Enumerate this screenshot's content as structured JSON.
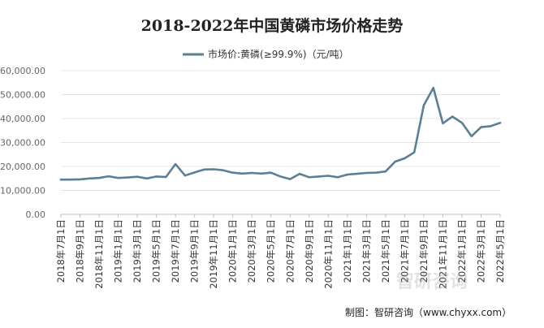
{
  "chart_data": {
    "type": "line",
    "title": "2018-2022年中国黄磷市场价格走势",
    "series": [
      {
        "name": "市场价:黄磷(≥99.9%)（元/吨）",
        "color": "#5b7f95",
        "values": [
          14500,
          14500,
          14600,
          15000,
          15200,
          15900,
          15200,
          15400,
          15700,
          15000,
          15800,
          15600,
          21000,
          16200,
          17500,
          18700,
          18800,
          18400,
          17400,
          17000,
          17300,
          17000,
          17400,
          15800,
          14700,
          16900,
          15500,
          15800,
          16100,
          15500,
          16600,
          16900,
          17300,
          17400,
          17900,
          22000,
          23400,
          25900,
          45500,
          52800,
          38000,
          40800,
          38200,
          32600,
          36400,
          36800,
          38200
        ]
      }
    ],
    "x_tick_labels": [
      "2018年7月1日",
      "2018年9月1日",
      "2018年11月1日",
      "2019年1月1日",
      "2019年3月1日",
      "2019年5月1日",
      "2019年7月1日",
      "2019年9月1日",
      "2019年11月1日",
      "2020年1月1日",
      "2020年3月1日",
      "2020年5月1日",
      "2020年7月1日",
      "2020年9月1日",
      "2020年11月1日",
      "2021年1月1日",
      "2021年3月1日",
      "2021年5月1日",
      "2021年7月1日",
      "2021年9月1日",
      "2021年11月1日",
      "2022年1月1日",
      "2022年3月1日",
      "2022年5月1日"
    ],
    "y_tick_labels": [
      "0.00",
      "10,000.00",
      "20,000.00",
      "30,000.00",
      "40,000.00",
      "50,000.00",
      "60,000.00"
    ],
    "ylim": [
      0,
      60000
    ],
    "grid": true,
    "legend_position": "top-center"
  },
  "source": "制图：智研咨询（www.chyxx.com）",
  "watermark": "智研咨询"
}
